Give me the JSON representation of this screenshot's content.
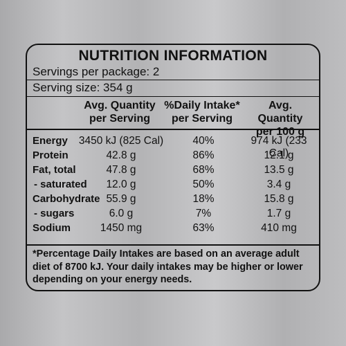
{
  "title": "NUTRITION INFORMATION",
  "servings_per_package": "Servings per package: 2",
  "serving_size": "Serving size: 354 g",
  "columns": [
    {
      "line1": "Avg. Quantity",
      "line2": "per Serving"
    },
    {
      "line1": "%Daily Intake*",
      "line2": "per Serving"
    },
    {
      "line1": "Avg. Quantity",
      "line2": "per 100 g"
    }
  ],
  "rows": [
    {
      "label": "Energy",
      "per_serving": "3450 kJ (825 Cal)",
      "daily_intake": "40%",
      "per_100g": "974 kJ (233 Cal)"
    },
    {
      "label": "Protein",
      "per_serving": "42.8 g",
      "daily_intake": "86%",
      "per_100g": "12.1 g"
    },
    {
      "label": "Fat, total",
      "per_serving": "47.8 g",
      "daily_intake": "68%",
      "per_100g": "13.5 g"
    },
    {
      "label": "- saturated",
      "per_serving": "12.0 g",
      "daily_intake": "50%",
      "per_100g": "3.4 g"
    },
    {
      "label": "Carbohydrate",
      "per_serving": "55.9 g",
      "daily_intake": "18%",
      "per_100g": "15.8 g"
    },
    {
      "label": "- sugars",
      "per_serving": "6.0 g",
      "daily_intake": "7%",
      "per_100g": "1.7 g"
    },
    {
      "label": "Sodium",
      "per_serving": "1450 mg",
      "daily_intake": "63%",
      "per_100g": "410 mg"
    }
  ],
  "footnote": "*Percentage Daily Intakes are based on an average adult diet of 8700 kJ. Your daily intakes may be higher or lower depending on your energy needs."
}
